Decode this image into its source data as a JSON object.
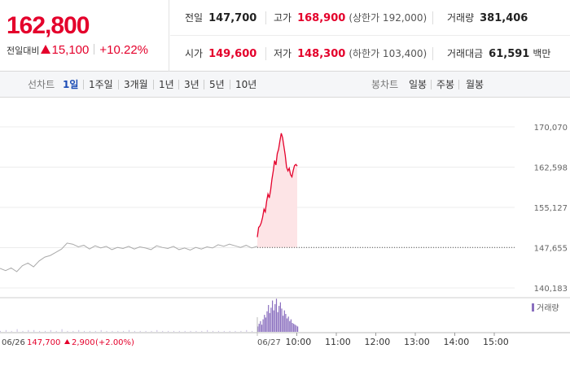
{
  "price": {
    "current": "162,800",
    "change_label": "전일대비",
    "change_abs": "15,100",
    "change_pct": "+10.22%"
  },
  "stats": {
    "prev_label": "전일",
    "prev_value": "147,700",
    "high_label": "고가",
    "high_value": "168,900",
    "upper_limit": "(상한가 192,000)",
    "volume_label": "거래량",
    "volume_value": "381,406",
    "open_label": "시가",
    "open_value": "149,600",
    "low_label": "저가",
    "low_value": "148,300",
    "lower_limit": "(하한가 103,400)",
    "amount_label": "거래대금",
    "amount_value": "61,591",
    "amount_unit": "백만"
  },
  "tabs": {
    "line_chart_label": "선차트",
    "periods": [
      "1일",
      "1주일",
      "3개월",
      "1년",
      "3년",
      "5년",
      "10년"
    ],
    "active_period": "1일",
    "candle_chart_label": "봉차트",
    "candle_periods": [
      "일봉",
      "주봉",
      "월봉"
    ]
  },
  "colors": {
    "up": "#e4002b",
    "volume": "#8a6fbf",
    "active_tab": "#1a4bb5"
  },
  "chart_data": {
    "type": "line",
    "y_ticks": [
      "170,070",
      "162,598",
      "155,127",
      "147,655",
      "140,183"
    ],
    "ylim": [
      140183,
      170070
    ],
    "x_ticks": [
      "10:00",
      "11:00",
      "12:00",
      "13:00",
      "14:00",
      "15:00"
    ],
    "prev_session_date": "06/26",
    "session_date": "06/27",
    "baseline": 147700,
    "legend": "거래량",
    "prev_day": [
      143800,
      143400,
      143900,
      143200,
      144300,
      144800,
      144100,
      145200,
      145900,
      146200,
      146800,
      147400,
      148500,
      148300,
      147800,
      148100,
      147400,
      148000,
      147600,
      147900,
      147300,
      147700,
      147500,
      147900,
      147400,
      147800,
      147600,
      147300,
      148000,
      147700,
      147500,
      147900,
      147300,
      147600,
      147200,
      147700,
      147400,
      147800,
      147600,
      148200,
      147900,
      148300,
      148000,
      147700,
      148100,
      147600,
      147900
    ],
    "today": [
      149600,
      151400,
      151700,
      152300,
      153300,
      154800,
      154300,
      156200,
      157600,
      156900,
      158300,
      160400,
      161900,
      163800,
      163000,
      165100,
      165900,
      167500,
      168900,
      168100,
      166400,
      164800,
      162600,
      161900,
      162400,
      161200,
      160800,
      162000,
      162900,
      163100,
      162800
    ],
    "prev_volume": [
      1,
      2,
      1,
      3,
      1,
      2,
      2,
      1,
      1,
      2,
      1,
      3,
      1,
      1,
      2,
      1,
      1,
      1,
      2,
      1,
      1,
      1,
      1,
      2,
      1,
      1,
      1,
      1,
      2,
      1,
      1,
      1,
      1,
      1,
      1,
      1,
      1,
      2,
      1,
      1,
      1,
      1,
      1,
      1,
      2,
      1,
      1
    ],
    "today_volume": [
      6,
      9,
      12,
      8,
      14,
      19,
      16,
      23,
      30,
      21,
      27,
      35,
      24,
      31,
      37,
      22,
      29,
      33,
      26,
      18,
      24,
      20,
      15,
      17,
      12,
      14,
      10,
      9,
      8,
      7,
      6
    ],
    "footer_prev_price": "147,700",
    "footer_prev_change": "2,900",
    "footer_prev_pct": "(+2.00%)"
  }
}
